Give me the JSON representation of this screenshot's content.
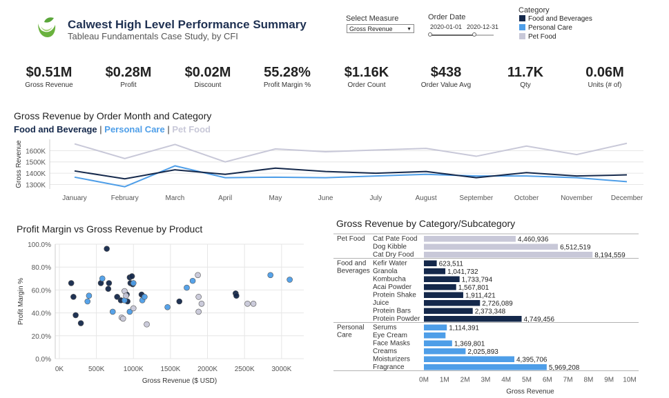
{
  "header": {
    "title": "Calwest High Level Performance Summary",
    "subtitle": "Tableau Fundamentals Case Study, by CFI"
  },
  "controls": {
    "measure_label": "Select Measure",
    "measure_value": "Gross Revenue",
    "date_label": "Order Date",
    "date_start": "2020-01-01",
    "date_end": "2020-12-31",
    "slider_start_fraction": 0.0,
    "slider_end_fraction": 0.7,
    "category_label": "Category",
    "categories": [
      {
        "name": "Food and Beverages",
        "color": "#14284b"
      },
      {
        "name": "Personal Care",
        "color": "#4e9ee8"
      },
      {
        "name": "Pet Food",
        "color": "#c8c8d8"
      }
    ]
  },
  "kpis": [
    {
      "value": "$0.51M",
      "label": "Gross Revenue"
    },
    {
      "value": "$0.28M",
      "label": "Profit"
    },
    {
      "value": "$0.02M",
      "label": "Discount"
    },
    {
      "value": "55.28%",
      "label": "Profit Margin %"
    },
    {
      "value": "$1.16K",
      "label": "Order Count"
    },
    {
      "value": "$438",
      "label": "Order Value Avg"
    },
    {
      "value": "11.7K",
      "label": "Qty"
    },
    {
      "value": "0.06M",
      "label": "Units (# of)"
    }
  ],
  "colors": {
    "food": "#14284b",
    "personal": "#4e9ee8",
    "pet": "#c8c8d8",
    "axis": "#555555",
    "grid": "#e6e6e6"
  },
  "line_section": {
    "title": "Gross Revenue by Order Month and Category",
    "legend_food": "Food and Beverage",
    "legend_personal": "Personal Care",
    "legend_pet": "Pet Food",
    "separator": "|"
  },
  "scatter_section": {
    "title": "Profit Margin vs Gross Revenue by Product"
  },
  "bar_section": {
    "title": "Gross Revenue by Category/Subcategory"
  },
  "chart_data": [
    {
      "type": "line",
      "ylabel": "Gross Revenue",
      "categories": [
        "January",
        "February",
        "March",
        "April",
        "May",
        "June",
        "July",
        "August",
        "September",
        "October",
        "November",
        "December"
      ],
      "yticks": [
        "1300K",
        "1400K",
        "1500K",
        "1600K"
      ],
      "ylim": [
        1260,
        1700
      ],
      "series": [
        {
          "name": "Food and Beverage",
          "values": [
            1420,
            1350,
            1430,
            1390,
            1445,
            1415,
            1400,
            1415,
            1360,
            1405,
            1375,
            1385
          ]
        },
        {
          "name": "Personal Care",
          "values": [
            1365,
            1280,
            1465,
            1360,
            1365,
            1360,
            1375,
            1390,
            1375,
            1375,
            1360,
            1325
          ]
        },
        {
          "name": "Pet Food",
          "values": [
            1660,
            1530,
            1655,
            1500,
            1615,
            1590,
            1605,
            1620,
            1550,
            1640,
            1565,
            1665
          ]
        }
      ]
    },
    {
      "type": "scatter",
      "xlabel": "Gross Revenue ($ USD)",
      "ylabel": "Profit Margin %",
      "xticks": [
        "0K",
        "500K",
        "1000K",
        "1500K",
        "2000K",
        "2500K",
        "3000K"
      ],
      "yticks": [
        "0.0%",
        "20.0%",
        "40.0%",
        "60.0%",
        "80.0%",
        "100.0%"
      ],
      "xlim": [
        0,
        3300
      ],
      "ylim": [
        0,
        100
      ],
      "series": [
        {
          "name": "Food and Beverages",
          "points": [
            [
              160,
              66
            ],
            [
              190,
              54
            ],
            [
              220,
              38
            ],
            [
              290,
              31
            ],
            [
              640,
              96
            ],
            [
              560,
              66
            ],
            [
              670,
              66
            ],
            [
              660,
              61
            ],
            [
              780,
              54
            ],
            [
              830,
              51
            ],
            [
              910,
              56
            ],
            [
              950,
              71
            ],
            [
              980,
              72
            ],
            [
              960,
              66
            ],
            [
              990,
              65
            ],
            [
              920,
              50
            ],
            [
              1110,
              56
            ],
            [
              1620,
              50
            ],
            [
              2380,
              57
            ],
            [
              2390,
              55
            ]
          ]
        },
        {
          "name": "Personal Care",
          "points": [
            [
              380,
              50
            ],
            [
              400,
              55
            ],
            [
              580,
              70
            ],
            [
              720,
              41
            ],
            [
              880,
              51
            ],
            [
              1000,
              66
            ],
            [
              950,
              41
            ],
            [
              1120,
              51
            ],
            [
              1150,
              54
            ],
            [
              1460,
              45
            ],
            [
              1720,
              62
            ],
            [
              1800,
              68
            ],
            [
              2850,
              73
            ],
            [
              3110,
              69
            ]
          ]
        },
        {
          "name": "Pet Food",
          "points": [
            [
              840,
              36
            ],
            [
              860,
              35
            ],
            [
              880,
              59
            ],
            [
              900,
              55
            ],
            [
              1000,
              44
            ],
            [
              1180,
              30
            ],
            [
              1870,
              73
            ],
            [
              1880,
              54
            ],
            [
              1920,
              48
            ],
            [
              1880,
              41
            ],
            [
              2540,
              48
            ],
            [
              2620,
              48
            ]
          ]
        }
      ]
    },
    {
      "type": "bar",
      "orientation": "horizontal",
      "xlabel": "Gross Revenue",
      "xticks": [
        "0M",
        "1M",
        "2M",
        "3M",
        "4M",
        "5M",
        "6M",
        "7M",
        "8M",
        "9M",
        "10M"
      ],
      "xlim": [
        0,
        10000000
      ],
      "groups": [
        {
          "name": "Pet Food",
          "label_lines": [
            "Pet Food"
          ],
          "items": [
            {
              "label": "Cat Pate Food",
              "value": 4460936,
              "value_label": "4,460,936"
            },
            {
              "label": "Dog Kibble",
              "value": 6512519,
              "value_label": "6,512,519"
            },
            {
              "label": "Cat Dry Food",
              "value": 8194559,
              "value_label": "8,194,559"
            }
          ]
        },
        {
          "name": "Food and Beverages",
          "label_lines": [
            "Food and",
            "Beverages"
          ],
          "items": [
            {
              "label": "Kefir Water",
              "value": 623511,
              "value_label": "623,511"
            },
            {
              "label": "Granola",
              "value": 1041732,
              "value_label": "1,041,732"
            },
            {
              "label": "Kombucha",
              "value": 1733794,
              "value_label": "1,733,794"
            },
            {
              "label": "Acai Powder",
              "value": 1567801,
              "value_label": "1,567,801"
            },
            {
              "label": "Protein Shake",
              "value": 1911421,
              "value_label": "1,911,421"
            },
            {
              "label": "Juice",
              "value": 2726089,
              "value_label": "2,726,089"
            },
            {
              "label": "Protein Bars",
              "value": 2373348,
              "value_label": "2,373,348"
            },
            {
              "label": "Protein Powder",
              "value": 4749456,
              "value_label": "4,749,456"
            }
          ]
        },
        {
          "name": "Personal Care",
          "label_lines": [
            "Personal",
            "Care"
          ],
          "items": [
            {
              "label": "Serums",
              "value": 1114391,
              "value_label": "1,114,391"
            },
            {
              "label": "Eye Cream",
              "value": 1050000,
              "value_label": ""
            },
            {
              "label": "Face Masks",
              "value": 1369801,
              "value_label": "1,369,801"
            },
            {
              "label": "Creams",
              "value": 2025893,
              "value_label": "2,025,893"
            },
            {
              "label": "Moisturizers",
              "value": 4395706,
              "value_label": "4,395,706"
            },
            {
              "label": "Fragrance",
              "value": 5969208,
              "value_label": "5,969,208"
            }
          ]
        }
      ]
    }
  ]
}
